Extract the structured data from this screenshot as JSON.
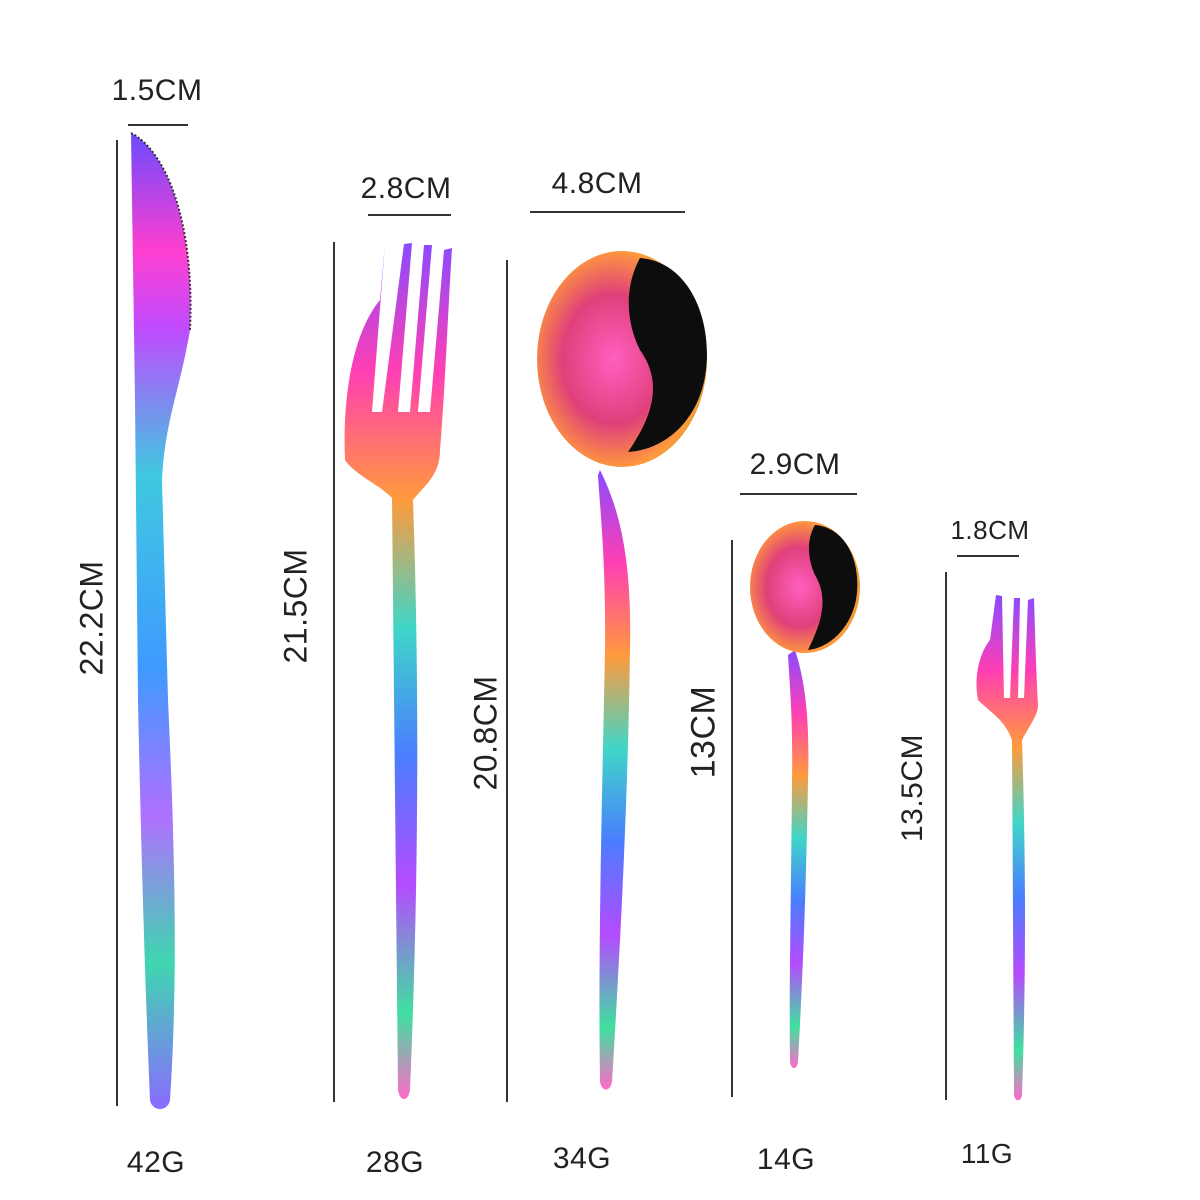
{
  "colors": {
    "background": "#ffffff",
    "line": "#333333",
    "text": "#222222"
  },
  "items": [
    {
      "name": "dinner knife",
      "width": "1.5CM",
      "length": "22.2CM",
      "weight": "42G"
    },
    {
      "name": "dinner fork",
      "width": "2.8CM",
      "length": "21.5CM",
      "weight": "28G"
    },
    {
      "name": "dinner spoon",
      "width": "4.8CM",
      "length": "20.8CM",
      "weight": "34G"
    },
    {
      "name": "tea spoon",
      "width": "2.9CM",
      "length": "13CM",
      "weight": "14G"
    },
    {
      "name": "dessert fork",
      "width": "1.8CM",
      "length": "13.5CM",
      "weight": "11G"
    }
  ]
}
